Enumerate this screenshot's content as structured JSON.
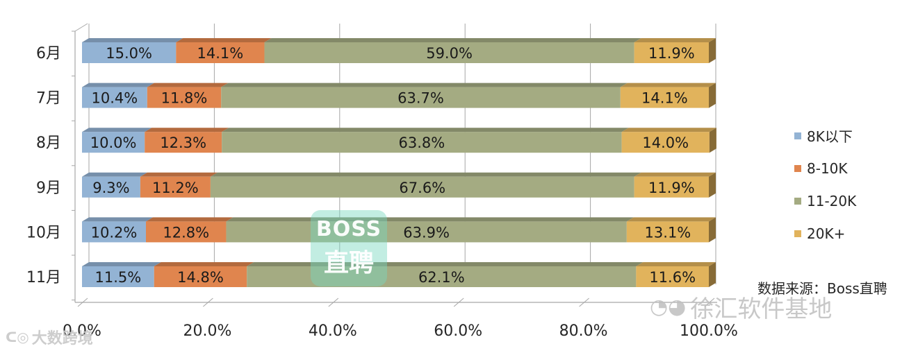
{
  "chart_data": {
    "type": "bar",
    "orientation": "horizontal",
    "stacked": true,
    "percent_stacked": true,
    "categories": [
      "6月",
      "7月",
      "8月",
      "9月",
      "10月",
      "11月"
    ],
    "series": [
      {
        "name": "8K以下",
        "color": "#93b3d4",
        "values": [
          15.0,
          10.4,
          10.0,
          9.3,
          10.2,
          11.5
        ]
      },
      {
        "name": "8-10K",
        "color": "#e0854e",
        "values": [
          14.1,
          11.8,
          12.3,
          11.2,
          12.8,
          14.8
        ]
      },
      {
        "name": "11-20K",
        "color": "#a4ab82",
        "values": [
          59.0,
          63.7,
          63.8,
          67.6,
          63.9,
          62.1
        ]
      },
      {
        "name": "20K+",
        "color": "#e1b35c",
        "values": [
          11.9,
          14.1,
          14.0,
          11.9,
          13.1,
          11.6
        ]
      }
    ],
    "data_labels": [
      [
        "15.0%",
        "14.1%",
        "59.0%",
        "11.9%"
      ],
      [
        "10.4%",
        "11.8%",
        "63.7%",
        "14.1%"
      ],
      [
        "10.0%",
        "12.3%",
        "63.8%",
        "14.0%"
      ],
      [
        "9.3%",
        "11.2%",
        "67.6%",
        "11.9%"
      ],
      [
        "10.2%",
        "12.8%",
        "63.9%",
        "13.1%"
      ],
      [
        "11.5%",
        "14.8%",
        "62.1%",
        "11.6%"
      ]
    ],
    "x_ticks": [
      "0.0%",
      "20.0%",
      "40.0%",
      "60.0%",
      "80.0%",
      "100.0%"
    ],
    "xlim": [
      0,
      100
    ],
    "grid": true,
    "legend_position": "right"
  },
  "source_note": "数据来源：Boss直聘",
  "watermarks": {
    "boss_line1": "BOSS",
    "boss_line2": "直聘",
    "right_text": "徐汇软件基地",
    "left_text": "大数跨境"
  }
}
